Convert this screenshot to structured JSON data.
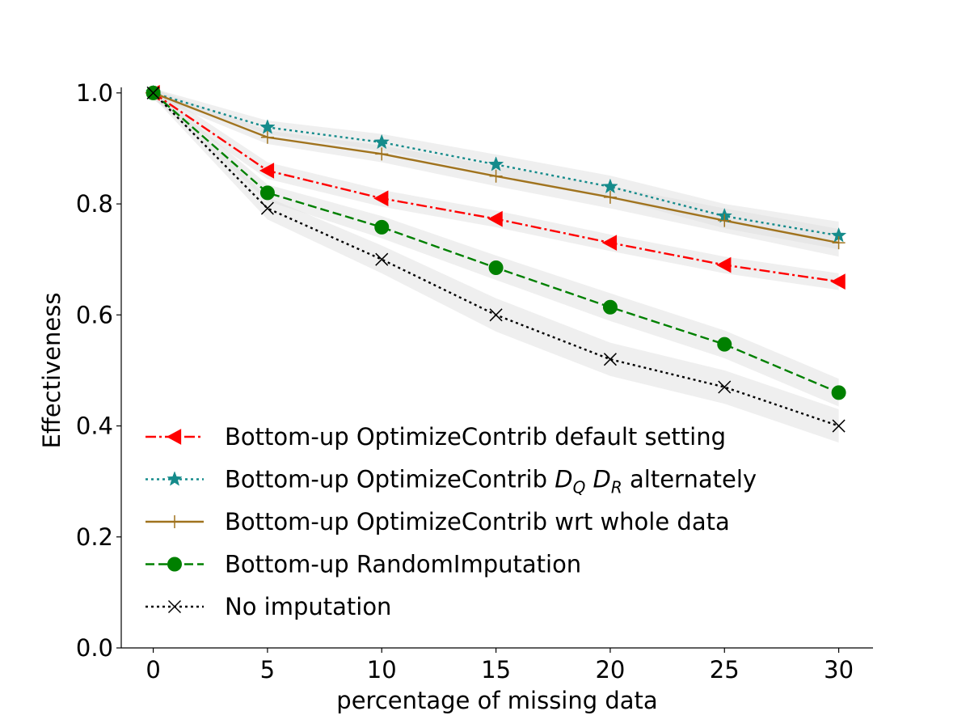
{
  "chart_data": {
    "type": "line",
    "title": "",
    "xlabel": "percentage of missing data",
    "ylabel": "Effectiveness",
    "x": [
      0,
      5,
      10,
      15,
      20,
      25,
      30
    ],
    "xticks": [
      0,
      5,
      10,
      15,
      20,
      25,
      30
    ],
    "yticks": [
      0.0,
      0.2,
      0.4,
      0.6,
      0.8,
      1.0
    ],
    "ytick_labels": [
      "0.0",
      "0.2",
      "0.4",
      "0.6",
      "0.8",
      "1.0"
    ],
    "xlim": [
      -1.4,
      31.5
    ],
    "ylim": [
      0.0,
      1.01
    ],
    "grid": false,
    "legend_position": "lower-left",
    "confidence_band": true,
    "band_color": "#e0e0e0",
    "series": [
      {
        "name": "Bottom-up OptimizeContrib default setting",
        "name_parts": {
          "prefix": "Bottom-up OptimizeContrib default setting"
        },
        "color": "#ff0000",
        "linestyle": "dashdot",
        "marker": "triangle-left",
        "values": [
          1.0,
          0.86,
          0.81,
          0.773,
          0.73,
          0.69,
          0.66
        ],
        "band": [
          0.012,
          0.015,
          0.015,
          0.015,
          0.015,
          0.015,
          0.015
        ]
      },
      {
        "name": "Bottom-up OptimizeContrib D_Q D_R alternately",
        "name_parts": {
          "prefix": "Bottom-up OptimizeContrib ",
          "sym1": "D",
          "sub1": "Q",
          "sym2": "D",
          "sub2": "R",
          "suffix": " alternately"
        },
        "color": "#158b8b",
        "linestyle": "dotted",
        "marker": "star",
        "values": [
          1.0,
          0.938,
          0.911,
          0.871,
          0.831,
          0.778,
          0.743
        ],
        "band": [
          0.008,
          0.012,
          0.015,
          0.018,
          0.02,
          0.022,
          0.025
        ]
      },
      {
        "name": "Bottom-up OptimizeContrib wrt whole data",
        "name_parts": {
          "prefix": "Bottom-up OptimizeContrib wrt whole data"
        },
        "color": "#a0731e",
        "linestyle": "solid",
        "marker": "plus",
        "values": [
          1.0,
          0.92,
          0.89,
          0.85,
          0.812,
          0.77,
          0.73
        ],
        "band": [
          0.008,
          0.012,
          0.015,
          0.018,
          0.02,
          0.022,
          0.025
        ]
      },
      {
        "name": "Bottom-up RandomImputation",
        "name_parts": {
          "prefix": "Bottom-up RandomImputation"
        },
        "color": "#008000",
        "linestyle": "dashed",
        "marker": "circle",
        "values": [
          1.0,
          0.82,
          0.758,
          0.685,
          0.614,
          0.547,
          0.46
        ],
        "band": [
          0.008,
          0.015,
          0.02,
          0.022,
          0.025,
          0.025,
          0.025
        ]
      },
      {
        "name": "No imputation",
        "name_parts": {
          "prefix": "No imputation"
        },
        "color": "#000000",
        "linestyle": "dotted",
        "marker": "x",
        "values": [
          1.0,
          0.792,
          0.7,
          0.6,
          0.52,
          0.47,
          0.4
        ],
        "band": [
          0.008,
          0.02,
          0.025,
          0.03,
          0.03,
          0.03,
          0.03
        ]
      }
    ]
  }
}
